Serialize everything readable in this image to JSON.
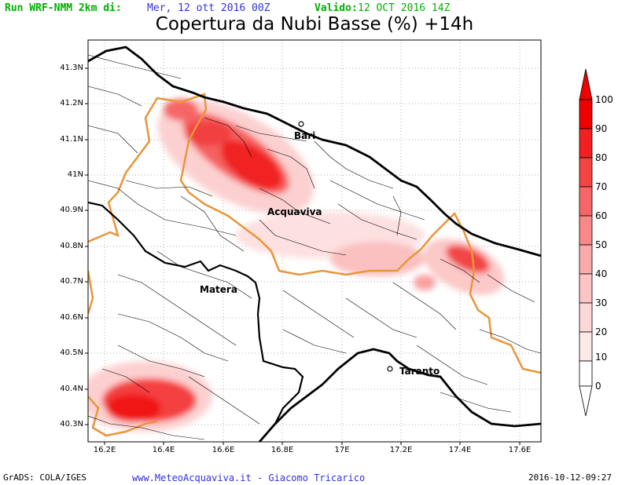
{
  "header": {
    "run_label": "Run WRF-NMM 2km di:",
    "run_date": "Mer, 12 ott 2016 00Z",
    "valid_label": "Valido:",
    "valid_date": "12 OCT 2016 14Z",
    "title": "Copertura da Nubi Basse (%) +14h"
  },
  "map": {
    "lat_labels": [
      "41.3N",
      "41.2N",
      "41.1N",
      "41N",
      "40.9N",
      "40.8N",
      "40.7N",
      "40.6N",
      "40.5N",
      "40.4N",
      "40.3N"
    ],
    "lon_labels": [
      "16.2E",
      "16.4E",
      "16.6E",
      "16.8E",
      "17E",
      "17.2E",
      "17.4E",
      "17.6E"
    ],
    "cities": {
      "bari": "Bari",
      "acquaviva": "Acquaviva",
      "matera": "Matera",
      "taranto": "Taranto"
    }
  },
  "colorbar": {
    "labels": [
      "100",
      "90",
      "80",
      "70",
      "60",
      "50",
      "40",
      "30",
      "20",
      "10",
      "0"
    ],
    "colors": [
      "#f00000",
      "#f22020",
      "#f44444",
      "#f76666",
      "#f98888",
      "#fbaaaa",
      "#fcc4c4",
      "#fdd8d8",
      "#fee8e8",
      "#ffffff"
    ]
  },
  "footer": {
    "source": "GrADS: COLA/IGES",
    "site": "www.MeteoAcquaviva.it  -  Giacomo Tricarico",
    "timestamp": "2016-10-12-09:27"
  },
  "colors": {
    "header_green": "#00b000",
    "header_blue": "#3030e0",
    "border_orange": "#e8963a"
  }
}
